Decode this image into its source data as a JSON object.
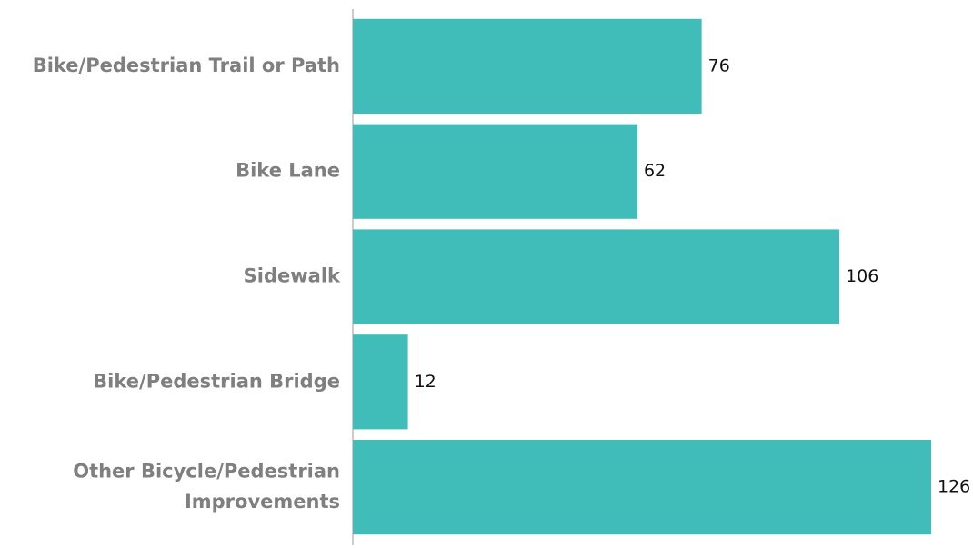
{
  "chart_data": {
    "type": "bar",
    "orientation": "horizontal",
    "categories": [
      "Bike/Pedestrian Trail or Path",
      "Bike Lane",
      "Sidewalk",
      "Bike/Pedestrian Bridge",
      "Other Bicycle/Pedestrian Improvements"
    ],
    "values": [
      76,
      62,
      106,
      12,
      126
    ],
    "color": "#40bdb8"
  }
}
